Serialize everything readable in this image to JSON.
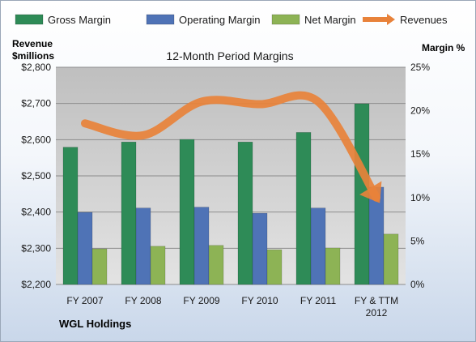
{
  "chart_data": {
    "type": "bar",
    "title": "12-Month Period Margins",
    "left_axis_title": [
      "Revenue",
      "$millions"
    ],
    "right_axis_title": "Margin %",
    "footer": "WGL Holdings",
    "categories": [
      [
        "FY 2007"
      ],
      [
        "FY 2008"
      ],
      [
        "FY 2009"
      ],
      [
        "FY 2010"
      ],
      [
        "FY 2011"
      ],
      [
        "FY & TTM",
        "2012"
      ]
    ],
    "left_axis": {
      "ylim": [
        2200,
        2800
      ],
      "ticks": [
        "$2,200",
        "$2,300",
        "$2,400",
        "$2,500",
        "$2,600",
        "$2,700",
        "$2,800"
      ]
    },
    "right_axis": {
      "ylim": [
        0,
        25
      ],
      "ticks": [
        "0%",
        "5%",
        "10%",
        "15%",
        "20%",
        "25%"
      ]
    },
    "series": [
      {
        "name": "Gross Margin",
        "axis": "right",
        "color": "#2e8b57",
        "values": [
          15.8,
          16.4,
          16.7,
          16.4,
          17.5,
          20.8
        ]
      },
      {
        "name": "Operating Margin",
        "axis": "right",
        "color": "#4f73b6",
        "values": [
          8.3,
          8.8,
          8.9,
          8.2,
          8.8,
          11.2
        ]
      },
      {
        "name": "Net Margin",
        "axis": "right",
        "color": "#8db355",
        "values": [
          4.1,
          4.4,
          4.5,
          4.0,
          4.2,
          5.8
        ]
      },
      {
        "name": "Revenues",
        "axis": "left",
        "type": "line",
        "color": "#e8823a",
        "values": [
          2645,
          2612,
          2705,
          2698,
          2705,
          2440
        ]
      }
    ],
    "grid": true,
    "legend_position": "top"
  }
}
